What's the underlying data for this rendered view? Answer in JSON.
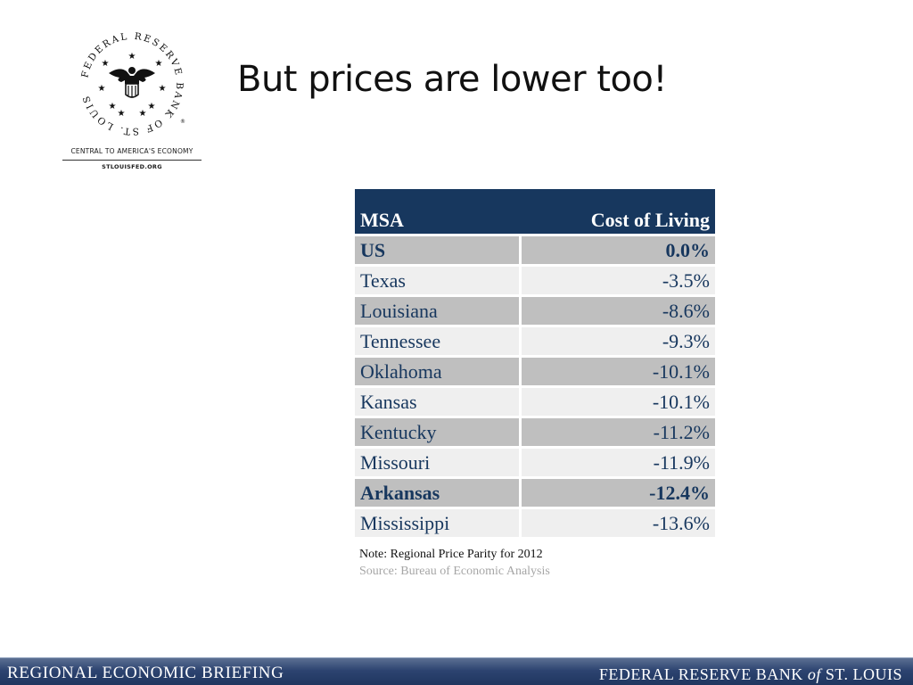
{
  "logo": {
    "seal_text": "FEDERAL RESERVE BANK OF ST. LOUIS",
    "tagline": "CENTRAL TO AMERICA'S ECONOMY",
    "tagline_mark": "®",
    "website": "STLOUISFED.ORG"
  },
  "slide": {
    "title": "But prices are lower too!"
  },
  "table": {
    "headers": {
      "msa": "MSA",
      "cost": "Cost of Living"
    },
    "rows": [
      {
        "msa": "US",
        "value": "0.0%",
        "bold": true,
        "shade": "shade"
      },
      {
        "msa": "Texas",
        "value": "-3.5%",
        "bold": false,
        "shade": "light"
      },
      {
        "msa": "Louisiana",
        "value": "-8.6%",
        "bold": false,
        "shade": "shade"
      },
      {
        "msa": "Tennessee",
        "value": "-9.3%",
        "bold": false,
        "shade": "light"
      },
      {
        "msa": "Oklahoma",
        "value": "-10.1%",
        "bold": false,
        "shade": "shade"
      },
      {
        "msa": "Kansas",
        "value": "-10.1%",
        "bold": false,
        "shade": "light"
      },
      {
        "msa": "Kentucky",
        "value": "-11.2%",
        "bold": false,
        "shade": "shade"
      },
      {
        "msa": "Missouri",
        "value": "-11.9%",
        "bold": false,
        "shade": "light"
      },
      {
        "msa": "Arkansas",
        "value": "-12.4%",
        "bold": true,
        "shade": "shade"
      },
      {
        "msa": "Mississippi",
        "value": "-13.6%",
        "bold": false,
        "shade": "light"
      }
    ],
    "note": "Note: Regional Price Parity for 2012",
    "source": "Source: Bureau of Economic Analysis"
  },
  "footer": {
    "left": "REGIONAL ECONOMIC BRIEFING",
    "right_pre": "FEDERAL RESERVE BANK ",
    "right_ital": "of",
    "right_post": " ST. LOUIS"
  },
  "colors": {
    "header_bg": "#17375e",
    "text_blue": "#17375e",
    "row_shade": "#bfbfbf",
    "row_light": "#efefef",
    "source_gray": "#a6a6a6",
    "footer_bar": "#2c4370"
  }
}
